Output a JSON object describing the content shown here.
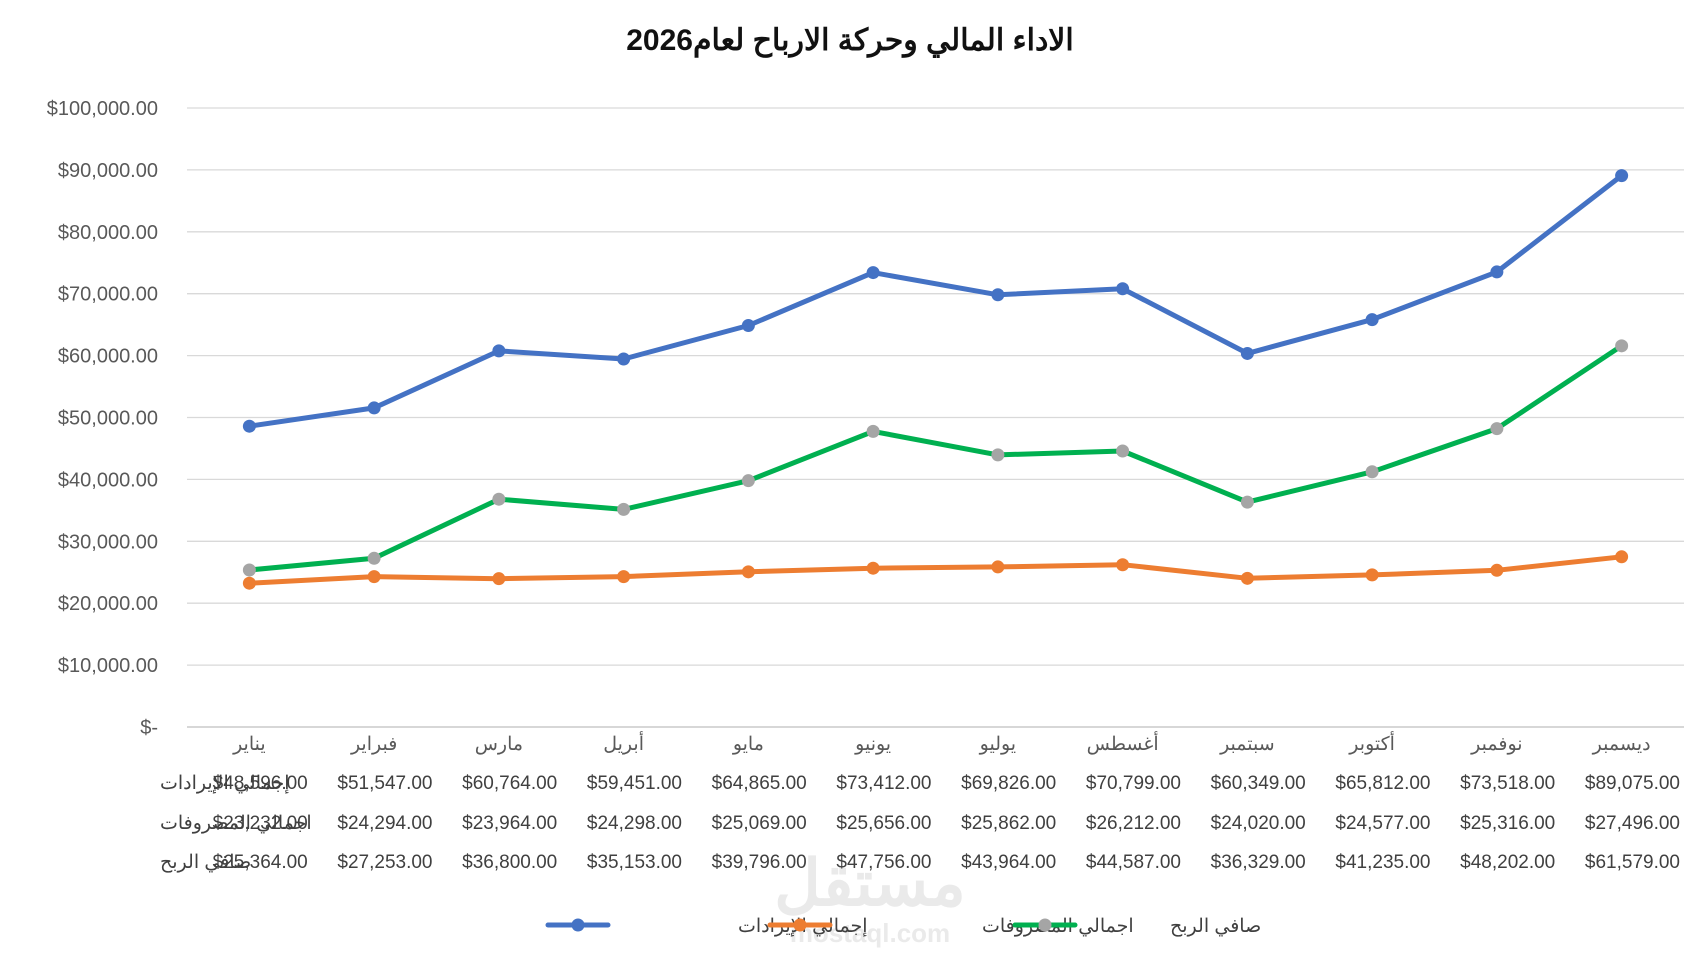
{
  "chart_data": {
    "type": "line",
    "title": "الاداء المالي وحركة الارباح لعام2026",
    "xlabel": "",
    "ylabel": "",
    "ylim": [
      0,
      100000
    ],
    "y_ticks": [
      "$-",
      "$10,000.00",
      "$20,000.00",
      "$30,000.00",
      "$40,000.00",
      "$50,000.00",
      "$60,000.00",
      "$70,000.00",
      "$80,000.00",
      "$90,000.00",
      "$100,000.00"
    ],
    "grid": true,
    "legend_position": "bottom",
    "categories": [
      "يناير",
      "فبراير",
      "مارس",
      "أبريل",
      "مايو",
      "يونيو",
      "يوليو",
      "أغسطس",
      "سبتمبر",
      "أكتوبر",
      "نوفمبر",
      "ديسمبر"
    ],
    "series": [
      {
        "name": "إجمالي الإيرادات",
        "color": "#4472C4",
        "marker_color": "#4472C4",
        "values": [
          48596,
          51547,
          60764,
          59451,
          64865,
          73412,
          69826,
          70799,
          60349,
          65812,
          73518,
          89075
        ],
        "labels": [
          "$48,596.00",
          "$51,547.00",
          "$60,764.00",
          "$59,451.00",
          "$64,865.00",
          "$73,412.00",
          "$69,826.00",
          "$70,799.00",
          "$60,349.00",
          "$65,812.00",
          "$73,518.00",
          "$89,075.00"
        ]
      },
      {
        "name": "اجمالي المصروفات",
        "color": "#ED7D31",
        "marker_color": "#ED7D31",
        "values": [
          23232,
          24294,
          23964,
          24298,
          25069,
          25656,
          25862,
          26212,
          24020,
          24577,
          25316,
          27496
        ],
        "labels": [
          "$23,232.00",
          "$24,294.00",
          "$23,964.00",
          "$24,298.00",
          "$25,069.00",
          "$25,656.00",
          "$25,862.00",
          "$26,212.00",
          "$24,020.00",
          "$24,577.00",
          "$25,316.00",
          "$27,496.00"
        ]
      },
      {
        "name": "صافي الربح",
        "color": "#00B050",
        "marker_color": "#A5A5A5",
        "values": [
          25364,
          27253,
          36800,
          35153,
          39796,
          47756,
          43964,
          44587,
          36329,
          41235,
          48202,
          61579
        ],
        "labels": [
          "$25,364.00",
          "$27,253.00",
          "$36,800.00",
          "$35,153.00",
          "$39,796.00",
          "$47,756.00",
          "$43,964.00",
          "$44,587.00",
          "$36,329.00",
          "$41,235.00",
          "$48,202.00",
          "$61,579.00"
        ]
      }
    ]
  },
  "watermark": {
    "text": "مستقل",
    "sub": "mostaql.com"
  }
}
